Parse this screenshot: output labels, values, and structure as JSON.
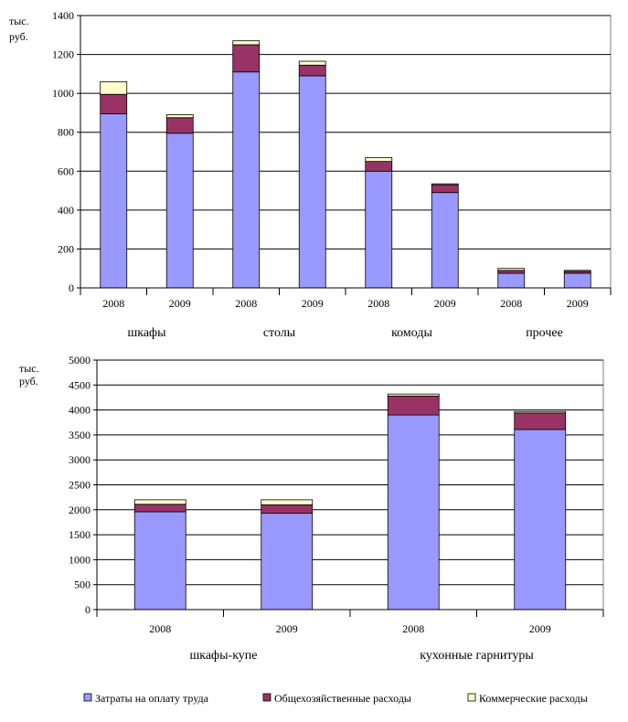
{
  "colors": {
    "labor": "#9999ff",
    "overhead": "#993366",
    "commercial": "#ffffcc"
  },
  "legend": [
    {
      "key": "labor",
      "label": "Затраты на оплату труда"
    },
    {
      "key": "overhead",
      "label": "Общехозяйственные расходы"
    },
    {
      "key": "commercial",
      "label": "Коммерческие расходы"
    }
  ],
  "chart_data": [
    {
      "type": "bar",
      "stacked": true,
      "unit_label": [
        "тыс.",
        "руб."
      ],
      "ylim": [
        0,
        1400
      ],
      "yticks": [
        0,
        200,
        400,
        600,
        800,
        1000,
        1200,
        1400
      ],
      "grid": true,
      "categories": [
        "2008",
        "2009",
        "2008",
        "2009",
        "2008",
        "2009",
        "2008",
        "2009"
      ],
      "groups": [
        "шкафы",
        "столы",
        "комоды",
        "прочее"
      ],
      "series": [
        {
          "name": "Затраты на оплату труда",
          "key": "labor",
          "values": [
            895,
            795,
            1110,
            1090,
            600,
            490,
            75,
            75
          ]
        },
        {
          "name": "Общехозяйственные расходы",
          "key": "overhead",
          "values": [
            100,
            80,
            140,
            55,
            50,
            40,
            15,
            10
          ]
        },
        {
          "name": "Коммерческие расходы",
          "key": "commercial",
          "values": [
            65,
            15,
            20,
            20,
            20,
            5,
            10,
            5
          ]
        }
      ]
    },
    {
      "type": "bar",
      "stacked": true,
      "unit_label": [
        "тыс.",
        "руб."
      ],
      "ylim": [
        0,
        5000
      ],
      "yticks": [
        0,
        500,
        1000,
        1500,
        2000,
        2500,
        3000,
        3500,
        4000,
        4500,
        5000
      ],
      "grid": true,
      "categories": [
        "2008",
        "2009",
        "2008",
        "2009"
      ],
      "groups": [
        "шкафы-купе",
        "кухонные гарнитуры"
      ],
      "series": [
        {
          "name": "Затраты на оплату труда",
          "key": "labor",
          "values": [
            1960,
            1930,
            3900,
            3610
          ]
        },
        {
          "name": "Общехозяйственные расходы",
          "key": "overhead",
          "values": [
            150,
            170,
            380,
            330
          ]
        },
        {
          "name": "Коммерческие расходы",
          "key": "commercial",
          "values": [
            90,
            100,
            40,
            30
          ]
        }
      ]
    }
  ]
}
